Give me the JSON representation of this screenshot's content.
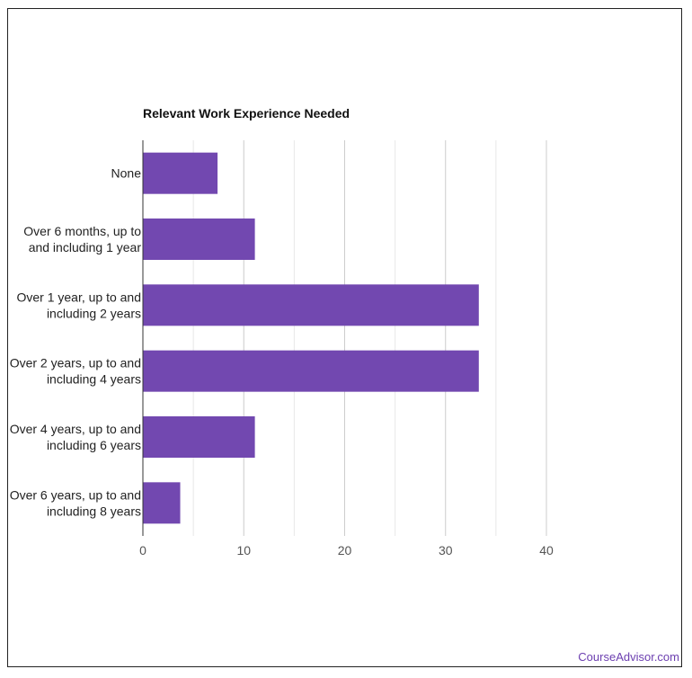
{
  "chart_data": {
    "type": "bar",
    "orientation": "horizontal",
    "title": "Relevant Work Experience Needed",
    "categories": [
      [
        "None"
      ],
      [
        "Over 6 months, up to",
        "and including 1 year"
      ],
      [
        "Over 1 year, up to and",
        "including 2 years"
      ],
      [
        "Over 2 years, up to and",
        "including 4 years"
      ],
      [
        "Over 4 years, up to and",
        "including 6 years"
      ],
      [
        "Over 6 years, up to and",
        "including 8 years"
      ]
    ],
    "values": [
      7.4,
      11.1,
      33.3,
      33.3,
      11.1,
      3.7
    ],
    "xlim": [
      0,
      40
    ],
    "xticks": [
      "0",
      "10",
      "20",
      "30",
      "40"
    ],
    "grid": true,
    "bar_color": "#7248b0"
  },
  "watermark": "CourseAdvisor.com"
}
